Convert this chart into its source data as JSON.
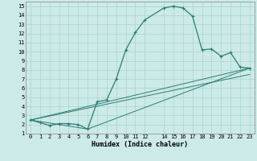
{
  "xlabel": "Humidex (Indice chaleur)",
  "bg_color": "#cceae7",
  "grid_color": "#aad4d0",
  "line_color": "#2d7d74",
  "xlim": [
    -0.5,
    23.5
  ],
  "ylim": [
    1,
    15.5
  ],
  "xticks": [
    0,
    1,
    2,
    3,
    4,
    5,
    6,
    7,
    8,
    9,
    10,
    11,
    12,
    14,
    15,
    16,
    17,
    18,
    19,
    20,
    21,
    22,
    23
  ],
  "yticks": [
    1,
    2,
    3,
    4,
    5,
    6,
    7,
    8,
    9,
    10,
    11,
    12,
    13,
    14,
    15
  ],
  "line1_x": [
    0,
    1,
    2,
    3,
    4,
    5,
    6,
    7,
    8,
    9,
    10,
    11,
    12,
    14,
    15,
    16,
    17,
    18,
    19,
    20,
    21,
    22,
    23
  ],
  "line1_y": [
    2.5,
    2.2,
    1.9,
    2.1,
    2.1,
    2.0,
    1.5,
    4.5,
    4.7,
    7.0,
    10.2,
    12.1,
    13.5,
    14.8,
    15.0,
    14.8,
    13.9,
    10.2,
    10.3,
    9.5,
    9.9,
    8.3,
    8.2
  ],
  "line2_x": [
    0,
    23
  ],
  "line2_y": [
    2.5,
    8.2
  ],
  "line3_x": [
    0,
    6,
    23
  ],
  "line3_y": [
    2.5,
    1.5,
    8.2
  ],
  "line4_x": [
    0,
    23
  ],
  "line4_y": [
    2.5,
    7.5
  ]
}
